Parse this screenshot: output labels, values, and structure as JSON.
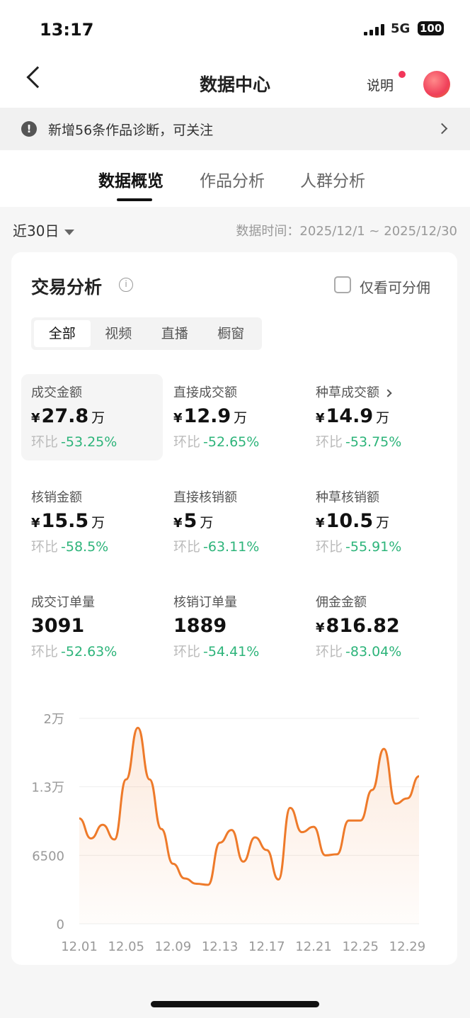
{
  "status_bar": {
    "time": "13:17",
    "network": "5G",
    "battery": "100"
  },
  "nav": {
    "title": "数据中心",
    "help_label": "说明",
    "avatar_icon": "mascot-avatar"
  },
  "notice": {
    "text": "新增56条作品诊断，可关注"
  },
  "tabs": [
    {
      "label": "数据概览",
      "active": true
    },
    {
      "label": "作品分析"
    },
    {
      "label": "人群分析"
    }
  ],
  "filter": {
    "range": "近30日",
    "date_label": "数据时间：2025/12/1 ~ 2025/12/30"
  },
  "card": {
    "title": "交易分析",
    "checkbox_label": "仅看可分佣",
    "checkbox_checked": false,
    "segments": [
      {
        "label": "全部",
        "active": true
      },
      {
        "label": "视频"
      },
      {
        "label": "直播"
      },
      {
        "label": "橱窗"
      }
    ],
    "metrics": [
      {
        "label": "成交金额",
        "currency": "¥",
        "value": "27.8",
        "unit": "万",
        "cmp_label": "环比",
        "cmp": "-53.25%",
        "selected": true
      },
      {
        "label": "直接成交额",
        "currency": "¥",
        "value": "12.9",
        "unit": "万",
        "cmp_label": "环比",
        "cmp": "-52.65%"
      },
      {
        "label": "种草成交额",
        "currency": "¥",
        "value": "14.9",
        "unit": "万",
        "cmp_label": "环比",
        "cmp": "-53.75%",
        "chevron": true
      },
      {
        "label": "核销金额",
        "currency": "¥",
        "value": "15.5",
        "unit": "万",
        "cmp_label": "环比",
        "cmp": "-58.5%"
      },
      {
        "label": "直接核销额",
        "currency": "¥",
        "value": "5",
        "unit": "万",
        "cmp_label": "环比",
        "cmp": "-63.11%"
      },
      {
        "label": "种草核销额",
        "currency": "¥",
        "value": "10.5",
        "unit": "万",
        "cmp_label": "环比",
        "cmp": "-55.91%"
      },
      {
        "label": "成交订单量",
        "currency": "",
        "value": "3091",
        "unit": "",
        "cmp_label": "环比",
        "cmp": "-52.63%"
      },
      {
        "label": "核销订单量",
        "currency": "",
        "value": "1889",
        "unit": "",
        "cmp_label": "环比",
        "cmp": "-54.41%"
      },
      {
        "label": "佣金金额",
        "currency": "¥",
        "value": "816.82",
        "unit": "",
        "cmp_label": "环比",
        "cmp": "-83.04%"
      }
    ]
  },
  "colors": {
    "line": "#ee7a2a",
    "positive_green": "#2db47a"
  },
  "chart_data": {
    "type": "area",
    "ylim": [
      0,
      19500
    ],
    "yticks": [
      0,
      6500,
      13000,
      19500
    ],
    "ytick_labels": [
      "0",
      "6500",
      "1.3万",
      "2万"
    ],
    "x": [
      "12.01",
      "12.02",
      "12.03",
      "12.04",
      "12.05",
      "12.06",
      "12.07",
      "12.08",
      "12.09",
      "12.10",
      "12.11",
      "12.12",
      "12.13",
      "12.14",
      "12.15",
      "12.16",
      "12.17",
      "12.18",
      "12.19",
      "12.20",
      "12.21",
      "12.22",
      "12.23",
      "12.24",
      "12.25",
      "12.26",
      "12.27",
      "12.28",
      "12.29",
      "12.30"
    ],
    "xtick_labels": [
      "12.01",
      "12.05",
      "12.09",
      "12.13",
      "12.17",
      "12.21",
      "12.25",
      "12.29"
    ],
    "values": [
      10000,
      8100,
      9400,
      8000,
      13700,
      18600,
      13700,
      9000,
      5700,
      4300,
      3800,
      3700,
      7700,
      8900,
      5900,
      8200,
      7000,
      4200,
      11000,
      8700,
      9200,
      6500,
      6600,
      9800,
      9800,
      12700,
      16600,
      11400,
      11900,
      14000
    ],
    "grid": true
  }
}
